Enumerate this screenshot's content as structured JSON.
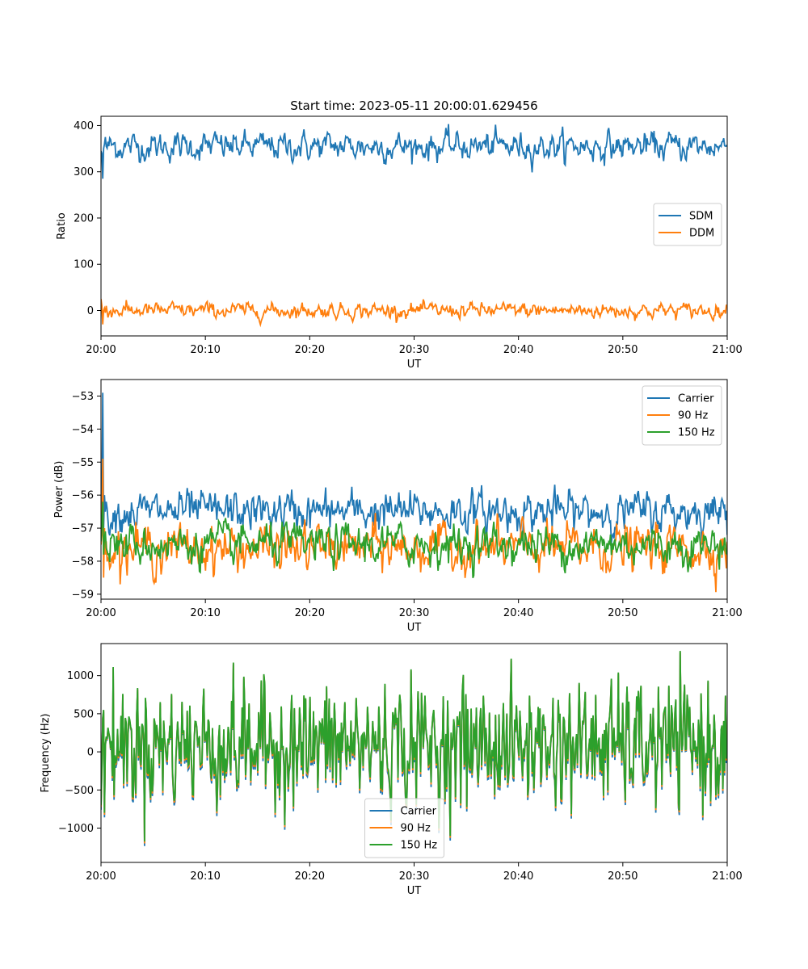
{
  "figure": {
    "title": "Start time: 2023-05-11 20:00:01.629456"
  },
  "chart_data": [
    {
      "type": "line",
      "title": "Start time: 2023-05-11 20:00:01.629456",
      "xlabel": "UT",
      "ylabel": "Ratio",
      "x_range": [
        "20:00",
        "21:00"
      ],
      "xticks": [
        "20:00",
        "20:10",
        "20:20",
        "20:30",
        "20:40",
        "20:50",
        "21:00"
      ],
      "ylim": [
        -55,
        420
      ],
      "yticks": [
        0,
        100,
        200,
        300,
        400
      ],
      "ytick_labels": [
        "0",
        "100",
        "200",
        "300",
        "400"
      ],
      "legend": "center-right",
      "series": [
        {
          "name": "SDM",
          "color": "#1f77b4",
          "mean": 355,
          "noise": 15,
          "first_values": [
            345,
            340,
            285,
            350,
            360,
            375,
            355
          ],
          "values": []
        },
        {
          "name": "DDM",
          "color": "#ff7f0e",
          "mean": 0,
          "noise": 8,
          "first_values": [
            25,
            10,
            -30,
            0,
            5,
            -5,
            10
          ],
          "values": []
        }
      ]
    },
    {
      "type": "line",
      "xlabel": "UT",
      "ylabel": "Power (dB)",
      "x_range": [
        "20:00",
        "21:00"
      ],
      "xticks": [
        "20:00",
        "20:10",
        "20:20",
        "20:30",
        "20:40",
        "20:50",
        "21:00"
      ],
      "ylim": [
        -59.15,
        -52.5
      ],
      "yticks": [
        -59,
        -58,
        -57,
        -56,
        -55,
        -54,
        -53
      ],
      "ytick_labels": [
        "−59",
        "−58",
        "−57",
        "−56",
        "−55",
        "−54",
        "−53"
      ],
      "legend": "top-right",
      "series": [
        {
          "name": "Carrier",
          "color": "#1f77b4",
          "mean": -56.5,
          "noise": 0.3,
          "first_values": [
            -56.8,
            -56.3,
            -52.9,
            -57.0,
            -56.0,
            -56.5,
            -56.2
          ],
          "values": []
        },
        {
          "name": "90 Hz",
          "color": "#ff7f0e",
          "mean": -57.6,
          "noise": 0.35,
          "first_values": [
            -57.5,
            -57.2,
            -54.9,
            -58.5,
            -57.0,
            -57.8,
            -57.4
          ],
          "values": []
        },
        {
          "name": "150 Hz",
          "color": "#2ca02c",
          "mean": -57.5,
          "noise": 0.3,
          "first_values": [
            -57.4,
            -56.8,
            -56.2,
            -57.8,
            -57.3,
            -57.1,
            -57.6
          ],
          "values": []
        }
      ]
    },
    {
      "type": "line",
      "xlabel": "UT",
      "ylabel": "Frequency (Hz)",
      "x_range": [
        "20:00",
        "21:00"
      ],
      "xticks": [
        "20:00",
        "20:10",
        "20:20",
        "20:30",
        "20:40",
        "20:50",
        "21:00"
      ],
      "ylim": [
        -1450,
        1420
      ],
      "yticks": [
        -1000,
        -500,
        0,
        500,
        1000
      ],
      "ytick_labels": [
        "−1000",
        "−500",
        "0",
        "500",
        "1000"
      ],
      "legend": "bottom-center",
      "series": [
        {
          "name": "Carrier",
          "color": "#1f77b4",
          "offset": -60,
          "values": []
        },
        {
          "name": "90 Hz",
          "color": "#ff7f0e",
          "offset": -25,
          "values": []
        },
        {
          "name": "150 Hz",
          "color": "#2ca02c",
          "offset": 0,
          "values": []
        }
      ],
      "base": {
        "mean": 100,
        "noise": 380,
        "first_values": [
          -700,
          -200,
          450,
          550,
          -800,
          100,
          200
        ]
      }
    }
  ]
}
